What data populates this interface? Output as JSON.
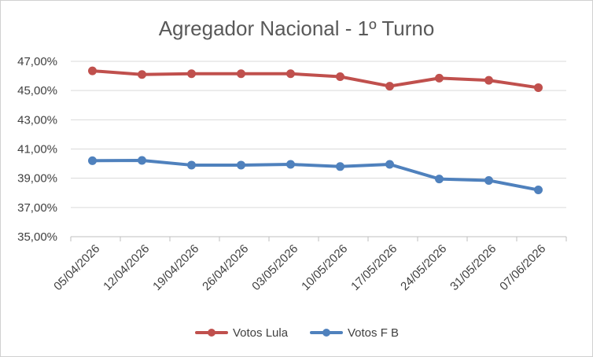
{
  "chart_data": {
    "type": "line",
    "title": "Agregador Nacional - 1º Turno",
    "xlabel": "",
    "ylabel": "",
    "categories": [
      "05/04/2026",
      "12/04/2026",
      "19/04/2026",
      "26/04/2026",
      "03/05/2026",
      "10/05/2026",
      "17/05/2026",
      "24/05/2026",
      "31/05/2026",
      "07/06/2026"
    ],
    "ylim": [
      35,
      47
    ],
    "yticks": [
      35,
      37,
      39,
      41,
      43,
      45,
      47
    ],
    "ytick_labels": [
      "35,00%",
      "37,00%",
      "39,00%",
      "41,00%",
      "43,00%",
      "45,00%",
      "47,00%"
    ],
    "grid": true,
    "legend_position": "bottom",
    "series": [
      {
        "name": "Votos Lula",
        "color": "#c0504d",
        "values": [
          46.35,
          46.1,
          46.15,
          46.15,
          46.15,
          45.95,
          45.3,
          45.85,
          45.7,
          45.2
        ]
      },
      {
        "name": "Votos F B",
        "color": "#4f81bd",
        "values": [
          40.2,
          40.22,
          39.9,
          39.9,
          39.95,
          39.8,
          39.95,
          38.95,
          38.85,
          38.2
        ]
      }
    ]
  }
}
